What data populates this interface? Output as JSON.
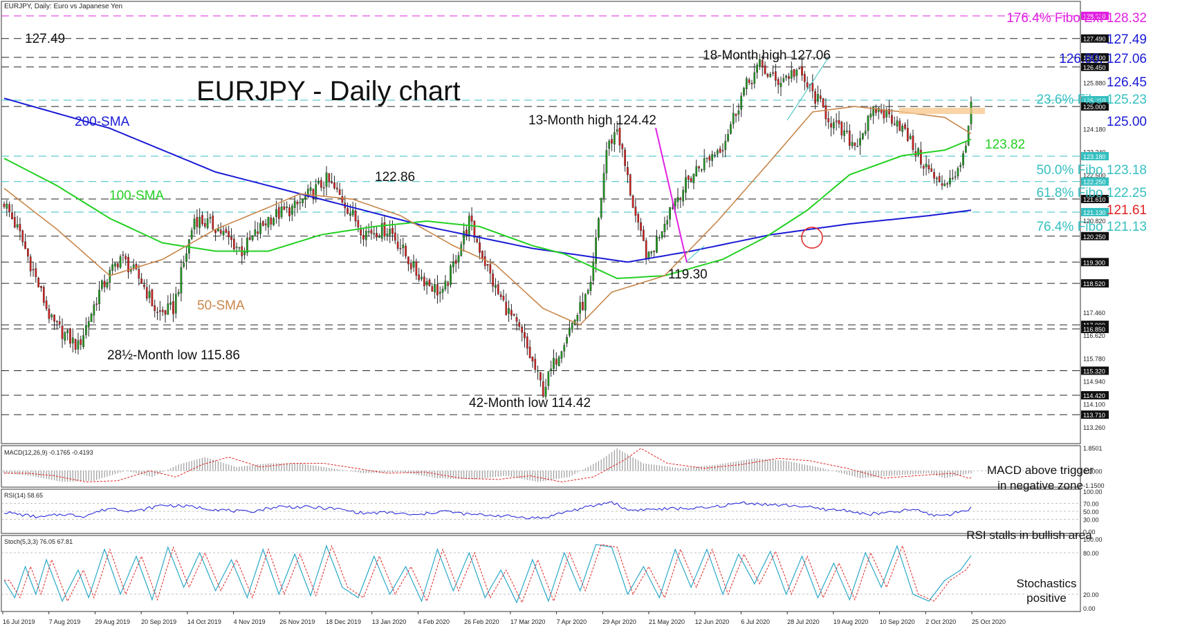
{
  "chart_data": {
    "type": "candlestick",
    "symbol_header": "EURJPY, Daily:  Euro vs Japanese Yen",
    "title": "EURJPY - Daily chart",
    "price_scale": {
      "min": 112.7,
      "max": 128.8
    },
    "price_ticks": [
      "128.320",
      "127.490",
      "126.800",
      "126.450",
      "125.880",
      "125.230",
      "125.000",
      "124.180",
      "123.340",
      "123.180",
      "122.500",
      "122.250",
      "121.610",
      "121.130",
      "120.820",
      "120.250",
      "119.300",
      "118.520",
      "117.460",
      "117.000",
      "116.850",
      "116.620",
      "115.780",
      "115.320",
      "114.940",
      "114.420",
      "114.100",
      "113.710",
      "113.260"
    ],
    "x_labels": [
      "16 Jul 2019",
      "7 Aug 2019",
      "29 Aug 2019",
      "20 Sep 2019",
      "14 Oct 2019",
      "4 Nov 2019",
      "26 Nov 2019",
      "18 Dec 2019",
      "13 Jan 2020",
      "4 Feb 2020",
      "26 Feb 2020",
      "17 Mar 2020",
      "7 Apr 2020",
      "29 Apr 2020",
      "21 May 2020",
      "12 Jun 2020",
      "6 Jul 2020",
      "28 Jul 2020",
      "19 Aug 2020",
      "10 Sep 2020",
      "2 Oct 2020",
      "25 Oct 2020"
    ],
    "anchors": [
      [
        0,
        121.5
      ],
      [
        6,
        120.3
      ],
      [
        18,
        117.1
      ],
      [
        28,
        116.2
      ],
      [
        36,
        118.2
      ],
      [
        44,
        119.5
      ],
      [
        52,
        118.6
      ],
      [
        58,
        117.4
      ],
      [
        64,
        117.6
      ],
      [
        72,
        120.9
      ],
      [
        80,
        120.6
      ],
      [
        90,
        119.7
      ],
      [
        100,
        120.9
      ],
      [
        110,
        121.3
      ],
      [
        122,
        122.3
      ],
      [
        128,
        121.6
      ],
      [
        136,
        120.4
      ],
      [
        146,
        120.5
      ],
      [
        156,
        118.9
      ],
      [
        166,
        118.1
      ],
      [
        176,
        120.8
      ],
      [
        186,
        118.3
      ],
      [
        196,
        116.6
      ],
      [
        204,
        114.6
      ],
      [
        212,
        116.5
      ],
      [
        222,
        118.3
      ],
      [
        228,
        123.4
      ],
      [
        232,
        124.2
      ],
      [
        240,
        120.5
      ],
      [
        244,
        119.4
      ],
      [
        252,
        121.3
      ],
      [
        262,
        122.7
      ],
      [
        272,
        123.6
      ],
      [
        280,
        125.6
      ],
      [
        286,
        126.5
      ],
      [
        292,
        125.9
      ],
      [
        300,
        126.3
      ],
      [
        308,
        125.2
      ],
      [
        314,
        124.3
      ],
      [
        322,
        123.6
      ],
      [
        330,
        124.9
      ],
      [
        338,
        124.5
      ],
      [
        346,
        123.2
      ],
      [
        354,
        122.1
      ],
      [
        362,
        122.7
      ],
      [
        366,
        124.9
      ]
    ],
    "sma_50": [
      [
        0,
        122.0
      ],
      [
        20,
        120.5
      ],
      [
        40,
        118.8
      ],
      [
        60,
        119.4
      ],
      [
        80,
        120.5
      ],
      [
        100,
        121.3
      ],
      [
        112,
        121.8
      ],
      [
        132,
        121.6
      ],
      [
        150,
        121.0
      ],
      [
        170,
        119.9
      ],
      [
        186,
        119.2
      ],
      [
        204,
        117.6
      ],
      [
        218,
        117.0
      ],
      [
        230,
        118.2
      ],
      [
        250,
        118.8
      ],
      [
        270,
        120.8
      ],
      [
        290,
        123.0
      ],
      [
        306,
        124.8
      ],
      [
        322,
        125.0
      ],
      [
        340,
        124.8
      ],
      [
        356,
        124.6
      ],
      [
        366,
        124.0
      ]
    ],
    "sma_100": [
      [
        0,
        123.1
      ],
      [
        20,
        122.1
      ],
      [
        40,
        120.9
      ],
      [
        60,
        120.0
      ],
      [
        80,
        119.7
      ],
      [
        100,
        119.7
      ],
      [
        120,
        120.3
      ],
      [
        140,
        120.6
      ],
      [
        160,
        120.8
      ],
      [
        180,
        120.6
      ],
      [
        200,
        119.9
      ],
      [
        212,
        119.6
      ],
      [
        232,
        118.7
      ],
      [
        250,
        118.8
      ],
      [
        272,
        119.4
      ],
      [
        288,
        120.2
      ],
      [
        304,
        121.2
      ],
      [
        320,
        122.5
      ],
      [
        340,
        123.2
      ],
      [
        356,
        123.4
      ],
      [
        366,
        123.8
      ]
    ],
    "sma_200": [
      [
        0,
        125.3
      ],
      [
        40,
        124.2
      ],
      [
        80,
        122.6
      ],
      [
        120,
        121.6
      ],
      [
        160,
        120.6
      ],
      [
        200,
        119.8
      ],
      [
        236,
        119.3
      ],
      [
        260,
        119.7
      ],
      [
        290,
        120.3
      ],
      [
        320,
        120.7
      ],
      [
        350,
        121.0
      ],
      [
        366,
        121.2
      ]
    ],
    "horizontal_levels": [
      {
        "price": 128.32,
        "style": "dash",
        "color": "#e020e0"
      },
      {
        "price": 127.49,
        "style": "dash",
        "color": "#222222"
      },
      {
        "price": 126.8,
        "style": "dash",
        "color": "#222222"
      },
      {
        "price": 126.45,
        "style": "dash",
        "color": "#222222"
      },
      {
        "price": 125.23,
        "style": "dash",
        "color": "#35bfc0"
      },
      {
        "price": 125.0,
        "style": "dash",
        "color": "#222222"
      },
      {
        "price": 123.18,
        "style": "dash",
        "color": "#35bfc0"
      },
      {
        "price": 122.25,
        "style": "dash",
        "color": "#35bfc0"
      },
      {
        "price": 121.61,
        "style": "dash",
        "color": "#222222"
      },
      {
        "price": 121.13,
        "style": "dash",
        "color": "#35bfc0"
      },
      {
        "price": 120.25,
        "style": "dash",
        "color": "#222222"
      },
      {
        "price": 119.3,
        "style": "dash",
        "color": "#222222"
      },
      {
        "price": 118.52,
        "style": "dash",
        "color": "#222222"
      },
      {
        "price": 117.0,
        "style": "dash",
        "color": "#222222"
      },
      {
        "price": 116.85,
        "style": "dash",
        "color": "#222222"
      },
      {
        "price": 115.32,
        "style": "dash",
        "color": "#222222"
      },
      {
        "price": 114.42,
        "style": "dash",
        "color": "#222222"
      },
      {
        "price": 113.71,
        "style": "dash",
        "color": "#222222"
      }
    ],
    "right_annotations": {
      "fibo_ext": "176.4% Fibo Ext 128.32",
      "r_127_49": "127.49",
      "r_126_80": "126.80, 127.06",
      "r_126_45": "126.45",
      "fibo_23": "23.6% Fibo 125.23",
      "r_125": "125.00",
      "r_123_82": "123.82",
      "fibo_50": "50.0% Fibo 123.18",
      "fibo_61": "61.8% Fibo 122.25",
      "r_121_61": "121.61",
      "fibo_76": "76.4% Fibo 121.13"
    },
    "chart_labels": {
      "left_127": "127.49",
      "high_18m": "18-Month high 127.06",
      "high_13m": "13-Month high 124.42",
      "sma200": "200-SMA",
      "sma100": "100-SMA",
      "sma50": "50-SMA",
      "p122_86": "122.86",
      "p119_30": "119.30",
      "low_28m": "28½-Month low 115.86",
      "low_42m": "42-Month low 114.42"
    },
    "macd": {
      "header": "MACD(12,26,9) -0.1765 -0.4193",
      "ticks": [
        "1.8501",
        "0.0000",
        "-1.1500"
      ],
      "note1": "MACD above trigger",
      "note2": "in negative zone",
      "min": -1.15,
      "max": 1.85,
      "anchors": [
        [
          0,
          -0.2
        ],
        [
          10,
          -0.4
        ],
        [
          22,
          -0.9
        ],
        [
          34,
          -0.8
        ],
        [
          46,
          0.0
        ],
        [
          56,
          -0.5
        ],
        [
          66,
          0.5
        ],
        [
          76,
          1.1
        ],
        [
          88,
          0.3
        ],
        [
          100,
          0.6
        ],
        [
          112,
          0.6
        ],
        [
          124,
          0.2
        ],
        [
          136,
          -0.2
        ],
        [
          150,
          -0.1
        ],
        [
          164,
          -0.6
        ],
        [
          178,
          -0.7
        ],
        [
          190,
          -0.4
        ],
        [
          202,
          -0.9
        ],
        [
          214,
          -0.5
        ],
        [
          226,
          0.9
        ],
        [
          232,
          1.8
        ],
        [
          242,
          0.6
        ],
        [
          256,
          0.2
        ],
        [
          270,
          0.5
        ],
        [
          284,
          1.0
        ],
        [
          296,
          0.8
        ],
        [
          310,
          0.2
        ],
        [
          324,
          -0.6
        ],
        [
          336,
          -0.4
        ],
        [
          350,
          -0.2
        ],
        [
          356,
          -0.6
        ],
        [
          366,
          -0.2
        ]
      ]
    },
    "rsi": {
      "header": "RSI(14) 58.65",
      "ticks": [
        "100.00",
        "70.00",
        "50.00",
        "30.00",
        "0.00"
      ],
      "note": "RSI stalls in bullish area",
      "min": 0,
      "max": 100,
      "anchors": [
        [
          0,
          48
        ],
        [
          6,
          42
        ],
        [
          14,
          35
        ],
        [
          22,
          43
        ],
        [
          30,
          38
        ],
        [
          40,
          58
        ],
        [
          50,
          50
        ],
        [
          60,
          66
        ],
        [
          70,
          62
        ],
        [
          80,
          55
        ],
        [
          92,
          48
        ],
        [
          104,
          62
        ],
        [
          116,
          60
        ],
        [
          126,
          56
        ],
        [
          136,
          45
        ],
        [
          146,
          47
        ],
        [
          156,
          40
        ],
        [
          166,
          51
        ],
        [
          176,
          42
        ],
        [
          186,
          40
        ],
        [
          194,
          36
        ],
        [
          204,
          33
        ],
        [
          212,
          48
        ],
        [
          222,
          62
        ],
        [
          230,
          74
        ],
        [
          236,
          53
        ],
        [
          246,
          55
        ],
        [
          256,
          57
        ],
        [
          266,
          58
        ],
        [
          280,
          72
        ],
        [
          290,
          66
        ],
        [
          300,
          64
        ],
        [
          310,
          55
        ],
        [
          320,
          52
        ],
        [
          326,
          42
        ],
        [
          336,
          47
        ],
        [
          344,
          55
        ],
        [
          352,
          40
        ],
        [
          358,
          42
        ],
        [
          366,
          58
        ]
      ]
    },
    "stoch": {
      "header": "Stoch(5,3,3) 76.05 67.81",
      "ticks": [
        "100.00",
        "80.00",
        "20.00",
        "0.00"
      ],
      "note1": "Stochastics",
      "note2": "positive",
      "min": 0,
      "max": 100,
      "anchors": [
        [
          0,
          40
        ],
        [
          4,
          15
        ],
        [
          8,
          60
        ],
        [
          12,
          20
        ],
        [
          16,
          70
        ],
        [
          22,
          10
        ],
        [
          28,
          55
        ],
        [
          32,
          15
        ],
        [
          38,
          85
        ],
        [
          44,
          20
        ],
        [
          50,
          75
        ],
        [
          56,
          12
        ],
        [
          62,
          88
        ],
        [
          68,
          30
        ],
        [
          74,
          80
        ],
        [
          80,
          25
        ],
        [
          86,
          70
        ],
        [
          92,
          15
        ],
        [
          98,
          85
        ],
        [
          104,
          20
        ],
        [
          110,
          78
        ],
        [
          116,
          18
        ],
        [
          122,
          90
        ],
        [
          128,
          30
        ],
        [
          134,
          15
        ],
        [
          140,
          75
        ],
        [
          146,
          20
        ],
        [
          152,
          60
        ],
        [
          158,
          10
        ],
        [
          164,
          85
        ],
        [
          170,
          25
        ],
        [
          176,
          80
        ],
        [
          182,
          15
        ],
        [
          188,
          55
        ],
        [
          194,
          8
        ],
        [
          200,
          70
        ],
        [
          206,
          10
        ],
        [
          212,
          80
        ],
        [
          218,
          25
        ],
        [
          224,
          92
        ],
        [
          230,
          88
        ],
        [
          236,
          20
        ],
        [
          242,
          60
        ],
        [
          248,
          15
        ],
        [
          254,
          85
        ],
        [
          260,
          30
        ],
        [
          266,
          85
        ],
        [
          272,
          20
        ],
        [
          278,
          78
        ],
        [
          284,
          35
        ],
        [
          290,
          82
        ],
        [
          296,
          20
        ],
        [
          302,
          75
        ],
        [
          308,
          15
        ],
        [
          314,
          65
        ],
        [
          320,
          12
        ],
        [
          326,
          80
        ],
        [
          332,
          30
        ],
        [
          338,
          90
        ],
        [
          344,
          20
        ],
        [
          350,
          10
        ],
        [
          356,
          40
        ],
        [
          362,
          55
        ],
        [
          366,
          76
        ]
      ]
    }
  }
}
